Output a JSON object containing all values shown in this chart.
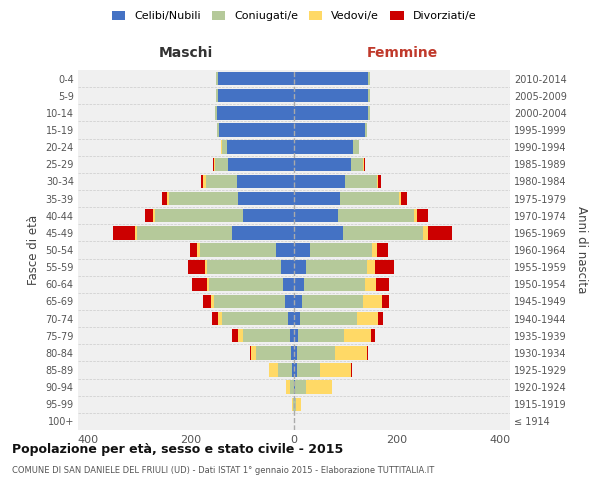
{
  "age_groups": [
    "100+",
    "95-99",
    "90-94",
    "85-89",
    "80-84",
    "75-79",
    "70-74",
    "65-69",
    "60-64",
    "55-59",
    "50-54",
    "45-49",
    "40-44",
    "35-39",
    "30-34",
    "25-29",
    "20-24",
    "15-19",
    "10-14",
    "5-9",
    "0-4"
  ],
  "birth_years": [
    "≤ 1914",
    "1915-1919",
    "1920-1924",
    "1925-1929",
    "1930-1934",
    "1935-1939",
    "1940-1944",
    "1945-1949",
    "1950-1954",
    "1955-1959",
    "1960-1964",
    "1965-1969",
    "1970-1974",
    "1975-1979",
    "1980-1984",
    "1985-1989",
    "1990-1994",
    "1995-1999",
    "2000-2004",
    "2005-2009",
    "2010-2014"
  ],
  "male": {
    "celibi": [
      0,
      0,
      0,
      3,
      5,
      8,
      12,
      18,
      22,
      26,
      35,
      120,
      100,
      108,
      110,
      128,
      130,
      145,
      150,
      148,
      148
    ],
    "coniugati": [
      0,
      2,
      8,
      28,
      68,
      92,
      128,
      138,
      143,
      143,
      148,
      185,
      170,
      135,
      62,
      25,
      10,
      4,
      4,
      4,
      4
    ],
    "vedovi": [
      0,
      2,
      8,
      18,
      10,
      8,
      8,
      5,
      5,
      5,
      5,
      5,
      4,
      4,
      4,
      3,
      2,
      0,
      0,
      0,
      0
    ],
    "divorziati": [
      0,
      0,
      0,
      0,
      2,
      12,
      12,
      15,
      28,
      32,
      15,
      42,
      15,
      10,
      5,
      2,
      0,
      0,
      0,
      0,
      0
    ]
  },
  "female": {
    "nubili": [
      0,
      0,
      2,
      5,
      5,
      8,
      12,
      16,
      20,
      24,
      32,
      95,
      85,
      90,
      100,
      110,
      115,
      138,
      143,
      143,
      143
    ],
    "coniugate": [
      0,
      4,
      22,
      45,
      75,
      90,
      110,
      118,
      118,
      118,
      120,
      155,
      148,
      115,
      62,
      25,
      12,
      4,
      4,
      4,
      4
    ],
    "vedove": [
      0,
      10,
      50,
      60,
      62,
      52,
      42,
      38,
      22,
      15,
      10,
      10,
      7,
      4,
      2,
      2,
      0,
      0,
      0,
      0,
      0
    ],
    "divorziate": [
      0,
      0,
      0,
      2,
      2,
      8,
      10,
      12,
      25,
      38,
      20,
      48,
      20,
      10,
      5,
      2,
      0,
      0,
      0,
      0,
      0
    ]
  },
  "colors": {
    "celibi_nubili": "#4472C4",
    "coniugati": "#B5C99A",
    "vedovi": "#FFD966",
    "divorziati": "#CC0000"
  },
  "title": "Popolazione per età, sesso e stato civile - 2015",
  "subtitle": "COMUNE DI SAN DANIELE DEL FRIULI (UD) - Dati ISTAT 1° gennaio 2015 - Elaborazione TUTTITALIA.IT",
  "xlabel_left": "Maschi",
  "xlabel_right": "Femmine",
  "ylabel_left": "Fasce di età",
  "ylabel_right": "Anni di nascita",
  "xlim": 420,
  "legend_labels": [
    "Celibi/Nubili",
    "Coniugati/e",
    "Vedovi/e",
    "Divorziati/e"
  ],
  "bg_color": "#ffffff",
  "axes_bg": "#f0f0f0"
}
